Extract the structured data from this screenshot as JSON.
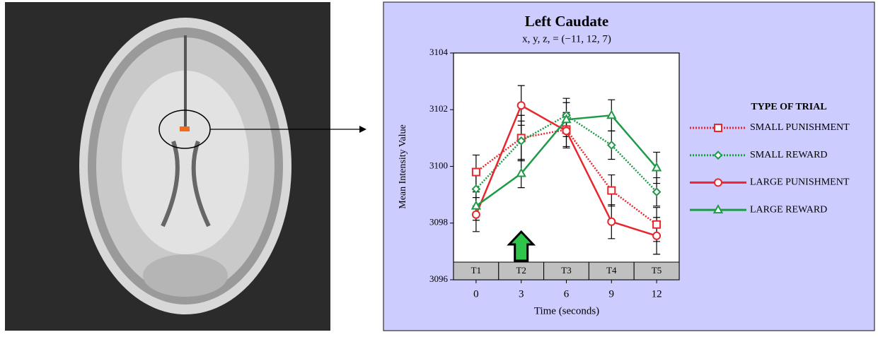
{
  "chart_data": {
    "type": "line",
    "title": "Left Caudate",
    "subtitle": "x, y, z, = (−11, 12, 7)",
    "xlabel": "Time (seconds)",
    "ylabel": "Mean Intensity Value",
    "x": [
      0,
      3,
      6,
      9,
      12
    ],
    "xlim": [
      -1.5,
      13.5
    ],
    "xticks": [
      0,
      3,
      6,
      9,
      12
    ],
    "ylim": [
      3096,
      3104
    ],
    "yticks": [
      3096,
      3098,
      3100,
      3102,
      3104
    ],
    "phase_labels": [
      "T1",
      "T2",
      "T3",
      "T4",
      "T5"
    ],
    "legend_title": "TYPE OF TRIAL",
    "legend_position": "right",
    "series": [
      {
        "name": "SMALL PUNISHMENT",
        "color": "#e8262b",
        "marker": "square",
        "line_style": "dotted",
        "values": [
          3099.8,
          3101.0,
          3101.3,
          3099.15,
          3097.95
        ],
        "errors": [
          0.6,
          0.8,
          0.6,
          0.55,
          0.6
        ]
      },
      {
        "name": "SMALL REWARD",
        "color": "#1e9a48",
        "marker": "diamond",
        "line_style": "dotted",
        "values": [
          3099.2,
          3100.9,
          3101.8,
          3100.75,
          3099.1
        ],
        "errors": [
          0.6,
          0.7,
          0.6,
          0.5,
          0.5
        ]
      },
      {
        "name": "LARGE PUNISHMENT",
        "color": "#e8262b",
        "marker": "circle",
        "line_style": "solid",
        "values": [
          3098.3,
          3102.15,
          3101.25,
          3098.05,
          3097.55
        ],
        "errors": [
          0.6,
          0.7,
          0.6,
          0.6,
          0.65
        ]
      },
      {
        "name": "LARGE REWARD",
        "color": "#1e9a48",
        "marker": "triangle",
        "line_style": "solid",
        "values": [
          3098.6,
          3099.75,
          3101.65,
          3101.8,
          3099.95
        ],
        "errors": [
          0.5,
          0.5,
          0.6,
          0.55,
          0.55
        ]
      }
    ]
  }
}
